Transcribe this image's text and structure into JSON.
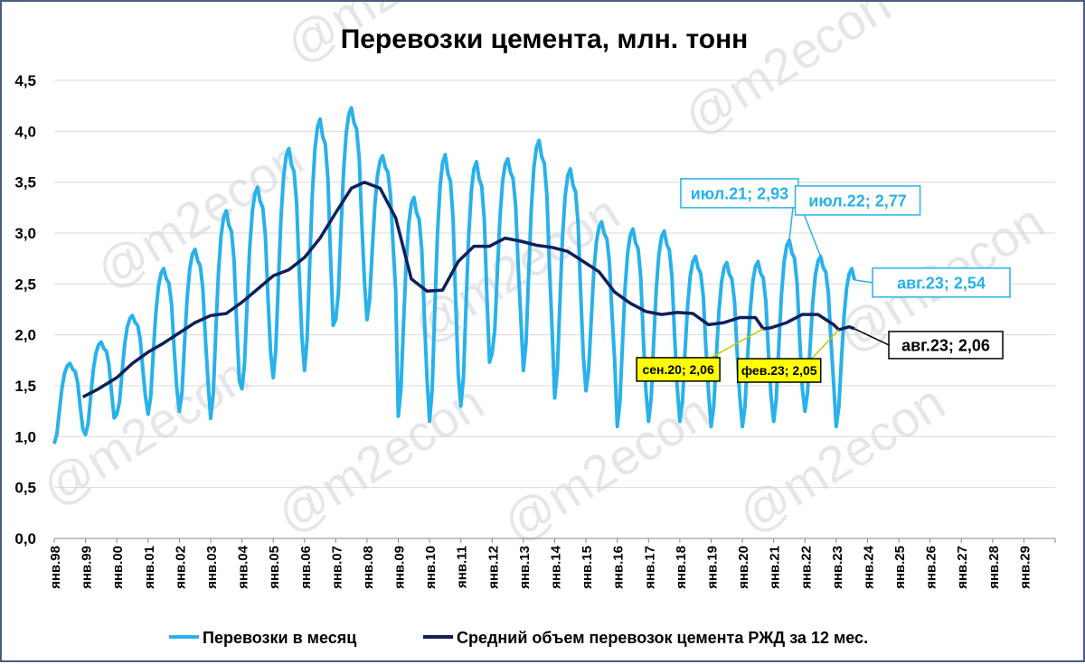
{
  "watermark": "@m2econ",
  "colors": {
    "monthly": "#29b1ea",
    "avg": "#0f1f5c",
    "frame": "#4a5c86",
    "grid": "#d9d9d9",
    "yellow": "#ffff00"
  },
  "chart_data": {
    "type": "line",
    "title": "Перевозки цемента, млн. тонн",
    "ylim": [
      0,
      4.5
    ],
    "yticks": [
      "0,0",
      "0,5",
      "1,0",
      "1,5",
      "2,0",
      "2,5",
      "3,0",
      "3,5",
      "4,0",
      "4,5"
    ],
    "grid": "horizontal",
    "x_tick_labels": [
      "янв.98",
      "янв.99",
      "янв.00",
      "янв.01",
      "янв.02",
      "янв.03",
      "янв.04",
      "янв.05",
      "янв.06",
      "янв.07",
      "янв.08",
      "янв.09",
      "янв.10",
      "янв.11",
      "янв.12",
      "янв.13",
      "янв.14",
      "янв.15",
      "янв.16",
      "янв.17",
      "янв.18",
      "янв.19",
      "янв.20",
      "янв.21",
      "янв.22",
      "янв.23",
      "янв.24",
      "янв.25",
      "янв.26",
      "янв.27",
      "янв.28",
      "янв.29"
    ],
    "x_start_year": 1998,
    "legend_position": "bottom",
    "series": [
      {
        "name": "Перевозки в месяц",
        "color": "#29b1ea",
        "monthly_min_by_year": [
          0.93,
          1.02,
          1.22,
          1.22,
          1.25,
          1.18,
          1.47,
          1.58,
          1.65,
          2.15,
          2.15,
          1.2,
          1.15,
          1.3,
          1.82,
          1.65,
          1.38,
          1.45,
          1.1,
          1.15,
          1.15,
          1.1,
          1.1,
          1.15,
          1.25,
          1.1
        ],
        "monthly_max_by_year": [
          1.72,
          1.93,
          2.19,
          2.65,
          2.84,
          3.22,
          3.45,
          3.83,
          4.12,
          4.23,
          3.76,
          3.35,
          3.77,
          3.7,
          3.73,
          3.91,
          3.63,
          3.11,
          3.04,
          3.02,
          2.77,
          2.71,
          2.72,
          2.93,
          2.77,
          2.65
        ],
        "last_value": 2.54
      },
      {
        "name": "Средний объем перевозок цемента РЖД за 12 мес.",
        "color": "#0f1f5c",
        "start": "1998-12",
        "points": [
          [
            "1998-12",
            1.39
          ],
          [
            "1999-06",
            1.47
          ],
          [
            "2000-01",
            1.58
          ],
          [
            "2000-07",
            1.72
          ],
          [
            "2001-01",
            1.83
          ],
          [
            "2001-07",
            1.92
          ],
          [
            "2002-01",
            2.02
          ],
          [
            "2002-07",
            2.12
          ],
          [
            "2003-01",
            2.19
          ],
          [
            "2003-07",
            2.21
          ],
          [
            "2004-01",
            2.32
          ],
          [
            "2004-07",
            2.45
          ],
          [
            "2005-01",
            2.58
          ],
          [
            "2005-07",
            2.64
          ],
          [
            "2006-01",
            2.76
          ],
          [
            "2006-07",
            2.95
          ],
          [
            "2007-01",
            3.2
          ],
          [
            "2007-07",
            3.44
          ],
          [
            "2007-12",
            3.5
          ],
          [
            "2008-06",
            3.44
          ],
          [
            "2008-12",
            3.15
          ],
          [
            "2009-06",
            2.55
          ],
          [
            "2009-12",
            2.43
          ],
          [
            "2010-06",
            2.44
          ],
          [
            "2010-12",
            2.72
          ],
          [
            "2011-06",
            2.87
          ],
          [
            "2011-12",
            2.87
          ],
          [
            "2012-06",
            2.95
          ],
          [
            "2012-12",
            2.92
          ],
          [
            "2013-06",
            2.88
          ],
          [
            "2013-12",
            2.86
          ],
          [
            "2014-06",
            2.82
          ],
          [
            "2014-12",
            2.72
          ],
          [
            "2015-06",
            2.62
          ],
          [
            "2015-12",
            2.42
          ],
          [
            "2016-06",
            2.31
          ],
          [
            "2016-12",
            2.23
          ],
          [
            "2017-06",
            2.2
          ],
          [
            "2017-12",
            2.22
          ],
          [
            "2018-06",
            2.21
          ],
          [
            "2018-12",
            2.1
          ],
          [
            "2019-06",
            2.12
          ],
          [
            "2019-12",
            2.17
          ],
          [
            "2020-06",
            2.17
          ],
          [
            "2020-09",
            2.06
          ],
          [
            "2020-12",
            2.07
          ],
          [
            "2021-06",
            2.12
          ],
          [
            "2021-12",
            2.2
          ],
          [
            "2022-06",
            2.2
          ],
          [
            "2022-12",
            2.1
          ],
          [
            "2023-02",
            2.05
          ],
          [
            "2023-06",
            2.08
          ],
          [
            "2023-08",
            2.06
          ]
        ]
      }
    ],
    "annotations": [
      {
        "label": "июл.21; 2,93",
        "x": "2021-07",
        "y": 2.93,
        "series": "monthly"
      },
      {
        "label": "июл.22; 2,77",
        "x": "2022-07",
        "y": 2.77,
        "series": "monthly"
      },
      {
        "label": "авг.23; 2,54",
        "x": "2023-08",
        "y": 2.54,
        "series": "monthly"
      },
      {
        "label": "авг.23; 2,06",
        "x": "2023-08",
        "y": 2.06,
        "series": "avg"
      },
      {
        "label": "сен.20; 2,06",
        "x": "2020-09",
        "y": 2.06,
        "series": "avg"
      },
      {
        "label": "фев.23; 2,05",
        "x": "2023-02",
        "y": 2.05,
        "series": "avg"
      }
    ]
  }
}
